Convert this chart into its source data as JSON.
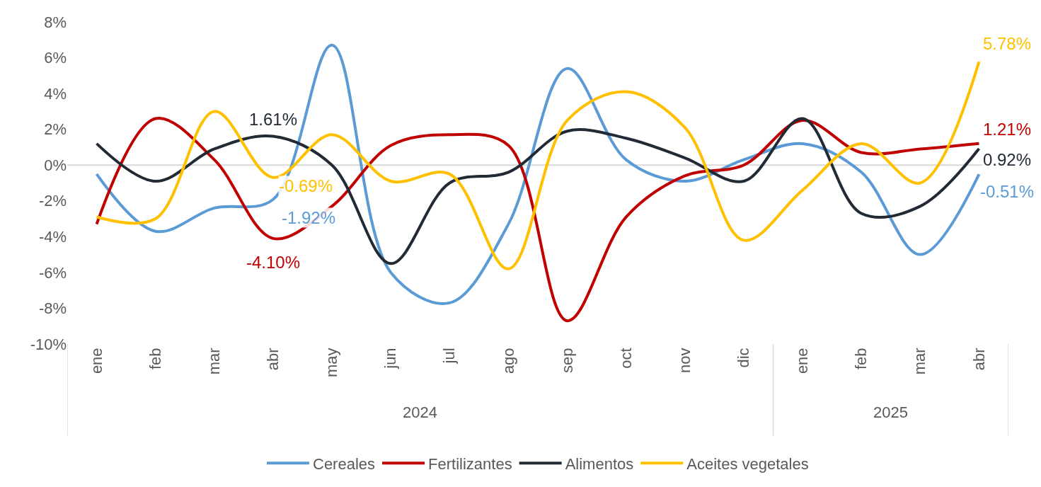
{
  "chart_data": {
    "type": "line",
    "categories": [
      "ene",
      "feb",
      "mar",
      "abr",
      "may",
      "jun",
      "jul",
      "ago",
      "sep",
      "oct",
      "nov",
      "dic",
      "ene",
      "feb",
      "mar",
      "abr"
    ],
    "series": [
      {
        "name": "Cereales",
        "color": "#5b9bd5",
        "values": [
          -0.5,
          -3.7,
          -2.4,
          -1.92,
          6.7,
          -6.0,
          -7.7,
          -3.3,
          5.4,
          0.3,
          -0.9,
          0.3,
          1.2,
          -0.4,
          -5.0,
          -0.51
        ],
        "value_labels": [
          null,
          null,
          null,
          "-1.92%",
          null,
          null,
          null,
          null,
          null,
          null,
          null,
          null,
          null,
          null,
          null,
          "-0.51%"
        ]
      },
      {
        "name": "Fertilizantes",
        "color": "#c00000",
        "values": [
          -3.3,
          2.6,
          0.3,
          -4.1,
          -2.3,
          1.1,
          1.7,
          1.1,
          -8.7,
          -2.9,
          -0.6,
          0.0,
          2.5,
          0.7,
          0.9,
          1.21
        ],
        "value_labels": [
          null,
          null,
          null,
          "-4.10%",
          null,
          null,
          null,
          null,
          null,
          null,
          null,
          null,
          null,
          null,
          null,
          "1.21%"
        ]
      },
      {
        "name": "Alimentos",
        "color": "#222a35",
        "values": [
          1.2,
          -0.9,
          0.9,
          1.61,
          0.0,
          -5.5,
          -1.0,
          -0.4,
          1.9,
          1.5,
          0.4,
          -0.9,
          2.6,
          -2.7,
          -2.3,
          0.92
        ],
        "value_labels": [
          null,
          null,
          null,
          "1.61%",
          null,
          null,
          null,
          null,
          null,
          null,
          null,
          null,
          null,
          null,
          null,
          "0.92%"
        ]
      },
      {
        "name": "Aceites vegetales",
        "color": "#ffc000",
        "values": [
          -2.9,
          -3.0,
          3.0,
          -0.69,
          1.7,
          -0.9,
          -0.5,
          -5.8,
          2.5,
          4.1,
          2.1,
          -4.2,
          -1.4,
          1.2,
          -1.0,
          5.78
        ],
        "value_labels": [
          null,
          null,
          null,
          "-0.69%",
          null,
          null,
          null,
          null,
          null,
          null,
          null,
          null,
          null,
          null,
          null,
          "5.78%"
        ]
      }
    ],
    "ylim": [
      -10,
      8
    ],
    "yticks": [
      {
        "value": -10,
        "label": "-10%"
      },
      {
        "value": -8,
        "label": "-8%"
      },
      {
        "value": -6,
        "label": "-6%"
      },
      {
        "value": -4,
        "label": "-4%"
      },
      {
        "value": -2,
        "label": "-2%"
      },
      {
        "value": 0,
        "label": "0%"
      },
      {
        "value": 2,
        "label": "2%"
      },
      {
        "value": 4,
        "label": "4%"
      },
      {
        "value": 6,
        "label": "6%"
      },
      {
        "value": 8,
        "label": "8%"
      }
    ],
    "annotations": [
      "2024",
      "2025"
    ],
    "ref_lines": [
      {
        "axis": "y",
        "value": 0,
        "color": "#d9d9d9"
      }
    ],
    "grid": false,
    "legend": "bottom",
    "marker": "none",
    "line_style": "solid"
  }
}
